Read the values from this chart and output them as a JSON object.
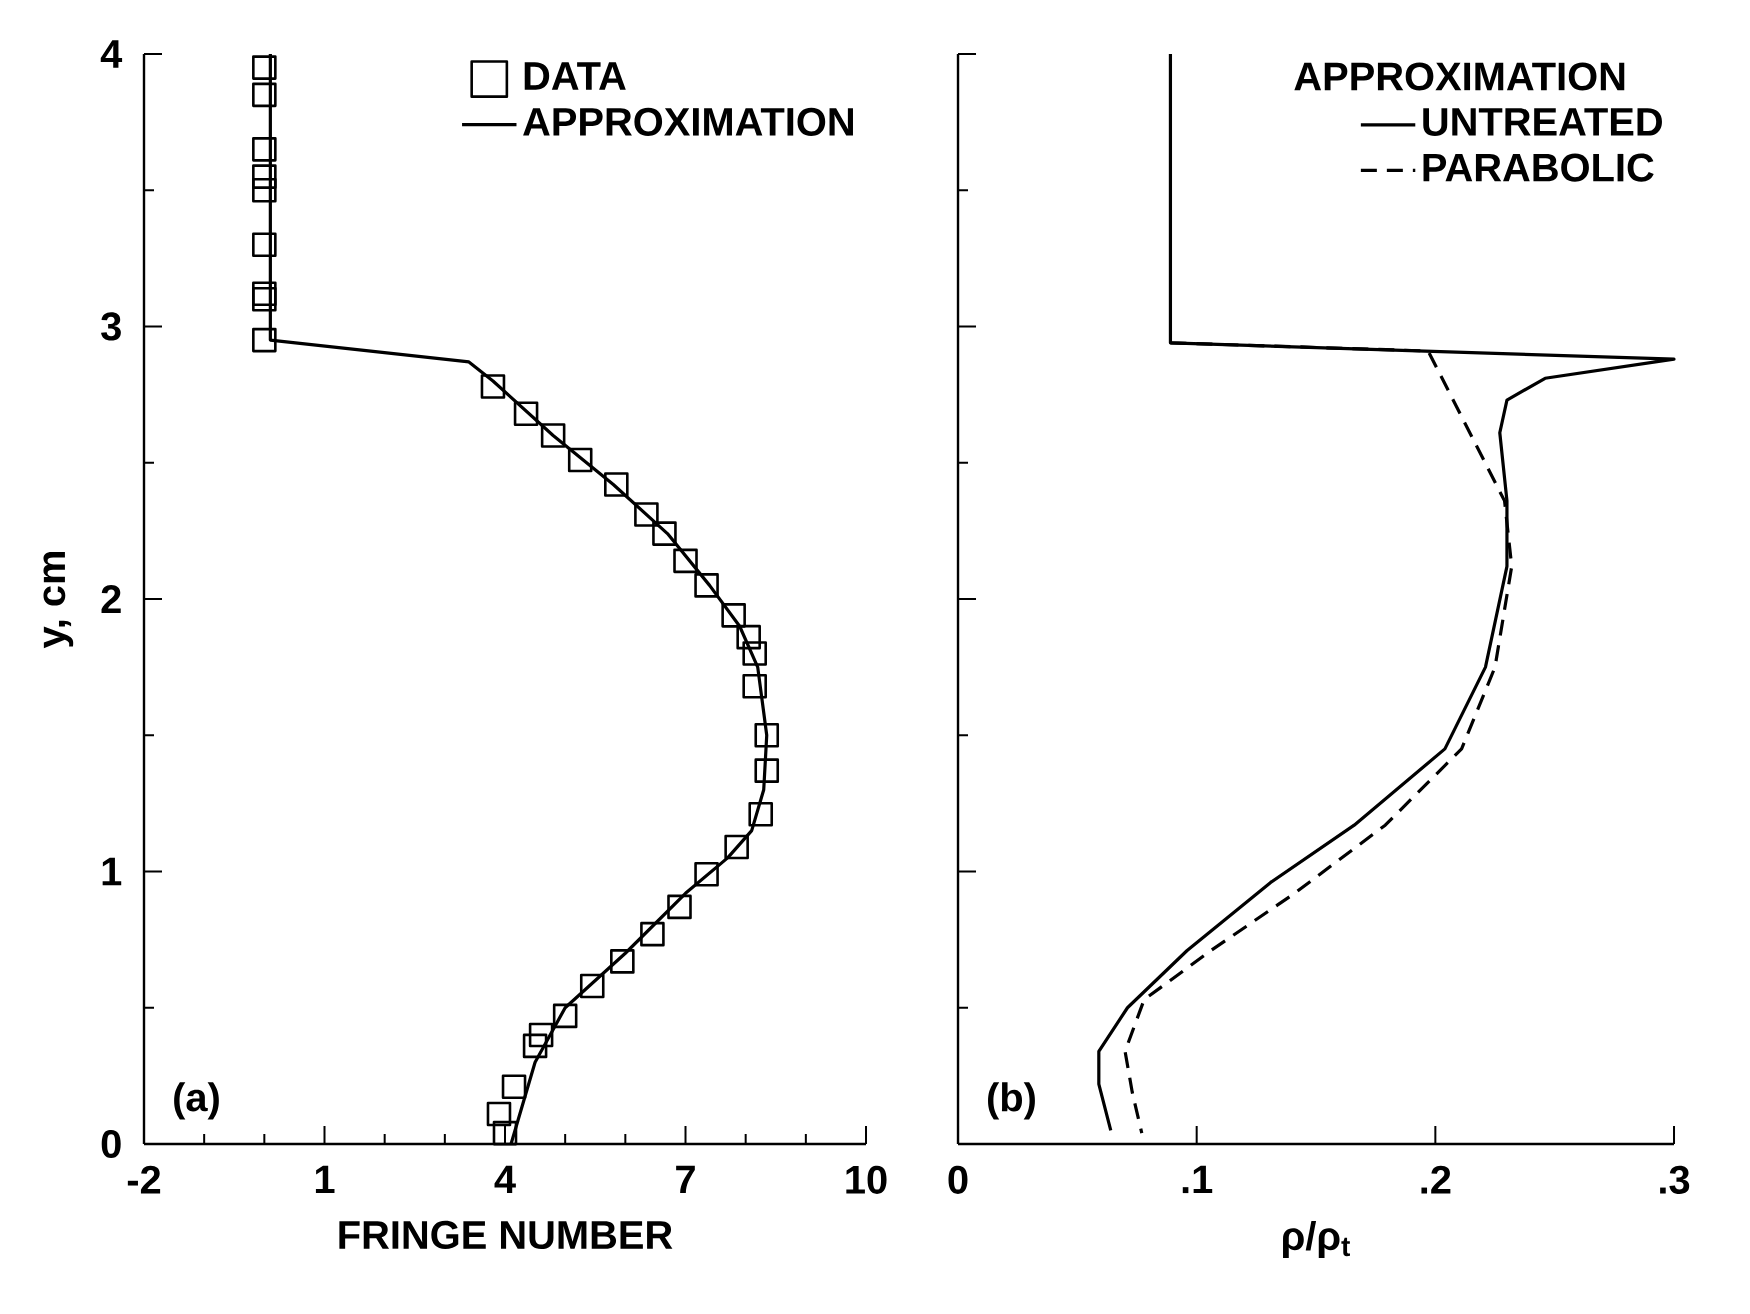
{
  "chart_data": [
    {
      "type": "line",
      "xlabel": "FRINGE NUMBER",
      "ylabel": "y, cm",
      "xlim": [
        -2,
        10
      ],
      "ylim": [
        0,
        4
      ],
      "xticks": [
        -2,
        1,
        4,
        7,
        10
      ],
      "yticks": [
        0,
        1,
        2,
        3,
        4
      ],
      "grid": false,
      "legend": "top right",
      "annotations": [
        "(a)"
      ],
      "series": [
        {
          "name": "DATA",
          "type": "scatter",
          "marker": "square",
          "color": "#000000",
          "x": [
            0,
            0,
            0,
            0,
            0,
            0,
            0,
            0,
            0,
            3.8,
            4.35,
            4.8,
            5.25,
            5.85,
            6.35,
            6.65,
            7.0,
            7.35,
            7.8,
            8.05,
            8.15,
            8.15,
            8.35,
            8.35,
            8.25,
            7.85,
            7.35,
            6.9,
            6.45,
            5.95,
            5.45,
            5.0,
            4.6,
            4.5,
            4.15,
            3.9,
            4.0
          ],
          "values": [
            3.95,
            3.85,
            3.65,
            3.55,
            3.5,
            3.3,
            3.12,
            3.1,
            2.95,
            2.78,
            2.68,
            2.6,
            2.51,
            2.42,
            2.31,
            2.24,
            2.14,
            2.05,
            1.94,
            1.86,
            1.8,
            1.68,
            1.5,
            1.37,
            1.21,
            1.09,
            0.99,
            0.87,
            0.77,
            0.67,
            0.58,
            0.47,
            0.4,
            0.36,
            0.21,
            0.11,
            0.04
          ]
        },
        {
          "name": "APPROXIMATION",
          "marker": "none",
          "line_style": "solid",
          "color": "#000000",
          "x": [
            0.1,
            0.1,
            3.4,
            3.8,
            4.8,
            5.8,
            6.7,
            7.4,
            7.9,
            8.2,
            8.35,
            8.3,
            8.1,
            7.7,
            7.0,
            6.0,
            5.0,
            4.5,
            4.1
          ],
          "values": [
            4.0,
            2.95,
            2.87,
            2.8,
            2.6,
            2.42,
            2.24,
            2.05,
            1.9,
            1.75,
            1.5,
            1.3,
            1.15,
            1.05,
            0.92,
            0.7,
            0.5,
            0.3,
            0.0
          ]
        }
      ]
    },
    {
      "type": "line",
      "xlabel": "ρ/ρ$_{t}$",
      "xlim": [
        0,
        0.3
      ],
      "ylim": [
        0,
        4
      ],
      "xticks": [
        0,
        {
          "value": 0.1,
          "label": ".1"
        },
        {
          "value": 0.2,
          "label": ".2"
        },
        {
          "value": 0.3,
          "label": ".3"
        }
      ],
      "yticks": [
        0,
        1,
        2,
        3,
        4
      ],
      "tick_labels": "x",
      "grid": false,
      "legend": "top right",
      "legend_title": "APPROXIMATION",
      "annotations": [
        "(b)"
      ],
      "series": [
        {
          "name": "UNTREATED",
          "marker": "none",
          "line_style": "solid",
          "color": "#000000",
          "x": [
            0.089,
            0.089,
            0.3,
            0.246,
            0.23,
            0.227,
            0.23,
            0.23,
            0.221,
            0.204,
            0.166,
            0.131,
            0.096,
            0.071,
            0.059,
            0.059,
            0.064
          ],
          "values": [
            4.0,
            2.94,
            2.88,
            2.81,
            2.73,
            2.61,
            2.36,
            2.12,
            1.75,
            1.45,
            1.17,
            0.96,
            0.71,
            0.5,
            0.34,
            0.22,
            0.05
          ]
        },
        {
          "name": "PARABOLIC",
          "marker": "none",
          "line_style": "dashed",
          "color": "#000000",
          "x": [
            0.089,
            0.197,
            0.229,
            0.232,
            0.225,
            0.211,
            0.179,
            0.141,
            0.106,
            0.078,
            0.07,
            0.073,
            0.077
          ],
          "values": [
            2.94,
            2.91,
            2.36,
            2.12,
            1.75,
            1.45,
            1.17,
            0.92,
            0.71,
            0.53,
            0.34,
            0.19,
            0.04
          ]
        }
      ]
    }
  ]
}
